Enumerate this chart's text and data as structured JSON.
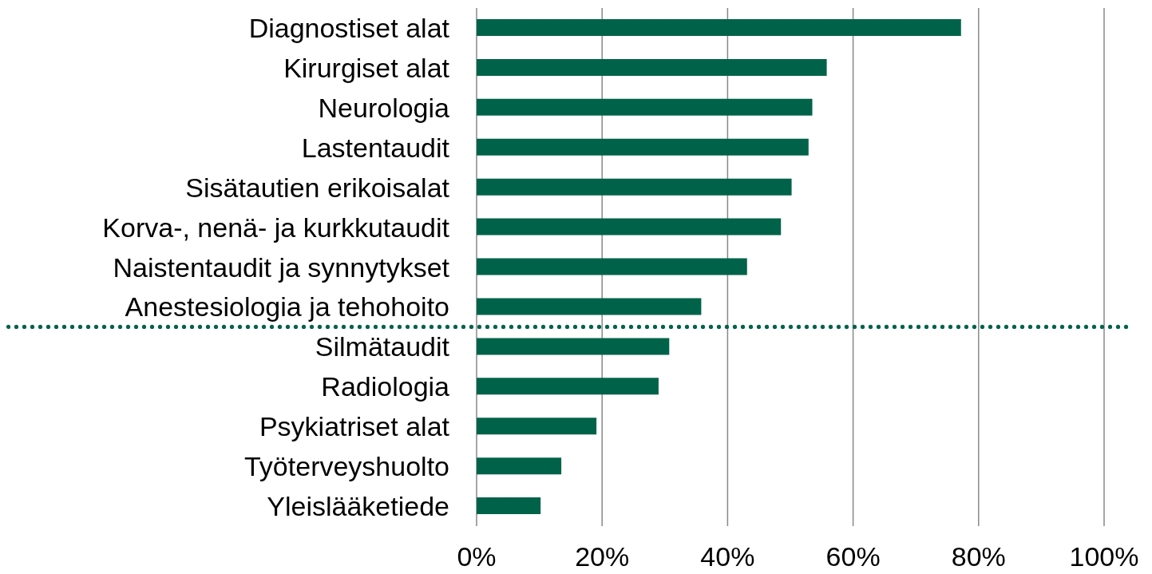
{
  "chart_data": {
    "type": "bar",
    "orientation": "horizontal",
    "categories": [
      "Diagnostiset alat",
      "Kirurgiset alat",
      "Neurologia",
      "Lastentaudit",
      "Sisätautien erikoisalat",
      "Korva-, nenä- ja kurkkutaudit",
      "Naistentaudit ja synnytykset",
      "Anestesiologia ja tehohoito",
      "Silmätaudit",
      "Radiologia",
      "Psykiatriset alat",
      "Työterveyshuolto",
      "Yleislääketiede"
    ],
    "values": [
      77.2,
      55.8,
      53.5,
      52.9,
      50.2,
      48.5,
      43.1,
      35.8,
      30.7,
      29.0,
      19.1,
      13.5,
      10.2
    ],
    "color": "#006349",
    "xlim": [
      0,
      100
    ],
    "xticks": [
      {
        "value": 0,
        "label": "0%"
      },
      {
        "value": 20,
        "label": "20%"
      },
      {
        "value": 40,
        "label": "40%"
      },
      {
        "value": 60,
        "label": "60%"
      },
      {
        "value": 80,
        "label": "80%"
      },
      {
        "value": 100,
        "label": "100%"
      }
    ],
    "grid": "x"
  }
}
